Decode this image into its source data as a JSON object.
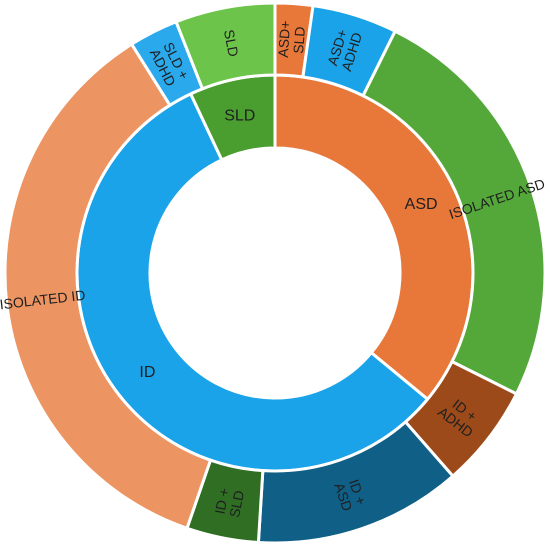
{
  "chart_data": {
    "type": "sunburst",
    "title": "",
    "inner_ring": [
      {
        "label": "ASD",
        "value": 36,
        "color": "#e8773a"
      },
      {
        "label": "ID",
        "value": 57,
        "color": "#1aa3e8"
      },
      {
        "label": "SLD",
        "value": 7,
        "color": "#4a9e2f"
      }
    ],
    "outer_ring": [
      {
        "label": "ASD+ SLD",
        "lines": [
          "ASD+",
          "SLD"
        ],
        "parent": "ASD",
        "value": 2.3,
        "color": "#e8773a"
      },
      {
        "label": "ASD+ ADHD",
        "lines": [
          "ASD+",
          "ADHD"
        ],
        "parent": "ASD",
        "value": 5.2,
        "color": "#1aa3e8"
      },
      {
        "label": "ISOLATED ASD",
        "lines": [
          "ISOLATED ASD"
        ],
        "parent": "ASD",
        "value": 25.6,
        "color": "#54a83a"
      },
      {
        "label": "ID + ADHD",
        "lines": [
          "ID +",
          "ADHD"
        ],
        "parent": "ID",
        "value": 6.3,
        "color": "#9c4a1a"
      },
      {
        "label": "ID + ASD",
        "lines": [
          "ID +",
          "ASD"
        ],
        "parent": "ID",
        "value": 12.7,
        "color": "#0f5f86"
      },
      {
        "label": "ID + SLD",
        "lines": [
          "ID +",
          "SLD"
        ],
        "parent": "ID",
        "value": 4.4,
        "color": "#2f6e23"
      },
      {
        "label": "ISOLATED ID",
        "lines": [
          "ISOLATED ID"
        ],
        "parent": "ID",
        "value": 36.6,
        "color": "#ec9462"
      },
      {
        "label": "SLD + ADHD",
        "lines": [
          "SLD +",
          "ADHD"
        ],
        "parent": "SLD",
        "value": 3.0,
        "color": "#2aa9ec"
      },
      {
        "label": "SLD",
        "lines": [
          "SLD"
        ],
        "parent": "SLD",
        "value": 6.1,
        "color": "#6cc44a"
      }
    ]
  }
}
